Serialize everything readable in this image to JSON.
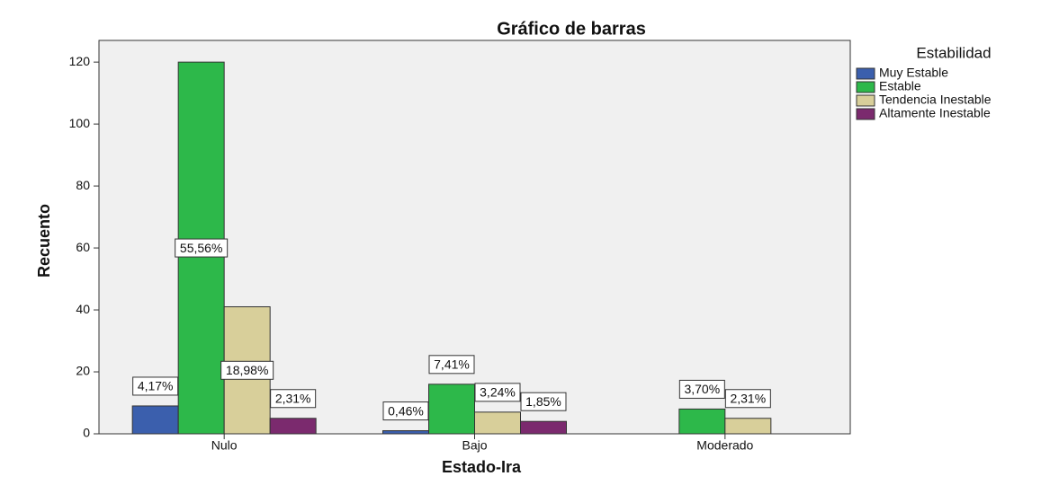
{
  "chart_data": {
    "type": "bar",
    "title": "Gráfico de barras",
    "x_label": "Estado-Ira",
    "y_label": "Recuento",
    "categories": [
      "Nulo",
      "Bajo",
      "Moderado"
    ],
    "legend_title": "Estabilidad",
    "legend": "right",
    "series": [
      {
        "name": "Muy Estable",
        "color": "#3b5fad",
        "values": [
          9,
          1,
          null
        ],
        "percent_labels": [
          "4,17%",
          "0,46%",
          null
        ]
      },
      {
        "name": "Estable",
        "color": "#2db84a",
        "values": [
          120,
          16,
          8
        ],
        "percent_labels": [
          "55,56%",
          "7,41%",
          "3,70%"
        ]
      },
      {
        "name": "Tendencia Inestable",
        "color": "#d8cf9a",
        "values": [
          41,
          7,
          5
        ],
        "percent_labels": [
          "18,98%",
          "3,24%",
          "2,31%"
        ]
      },
      {
        "name": "Altamente Inestable",
        "color": "#7b2a6e",
        "values": [
          5,
          4,
          null
        ],
        "percent_labels": [
          "2,31%",
          "1,85%",
          null
        ]
      }
    ],
    "ylim": [
      0,
      127
    ],
    "yticks": [
      0,
      20,
      40,
      60,
      80,
      100,
      120
    ]
  }
}
